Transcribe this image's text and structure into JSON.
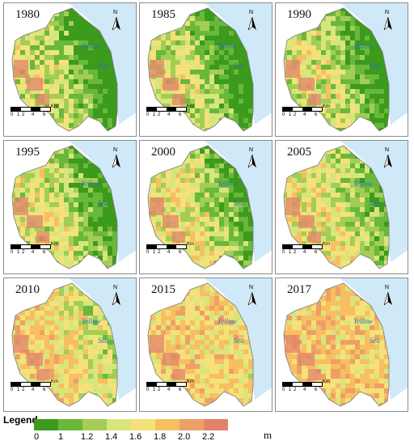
{
  "maps": [
    {
      "year": "1980",
      "green": 0.95
    },
    {
      "year": "1985",
      "green": 0.92
    },
    {
      "year": "1990",
      "green": 0.85
    },
    {
      "year": "1995",
      "green": 0.75
    },
    {
      "year": "2000",
      "green": 0.65
    },
    {
      "year": "2005",
      "green": 0.55
    },
    {
      "year": "2010",
      "green": 0.3
    },
    {
      "year": "2015",
      "green": 0.12
    },
    {
      "year": "2017",
      "green": 0.05
    }
  ],
  "sea_label": [
    "Yellow",
    "Sea"
  ],
  "north_label": "N",
  "scale": {
    "ticks": [
      "0",
      "1",
      "2",
      "4",
      "6"
    ],
    "unit": "Km"
  },
  "legend": {
    "title": "Legend",
    "labels": [
      "0",
      "1",
      "1.2",
      "1.4",
      "1.6",
      "1.8",
      "2.0",
      "2.2"
    ],
    "unit": "m",
    "colors": [
      "#3c9a1d",
      "#69b83a",
      "#a3cd55",
      "#d7e57c",
      "#f5e17a",
      "#f7bf61",
      "#ee9f66",
      "#e2836b"
    ]
  },
  "colors": {
    "sea": "#cfe9f8"
  }
}
